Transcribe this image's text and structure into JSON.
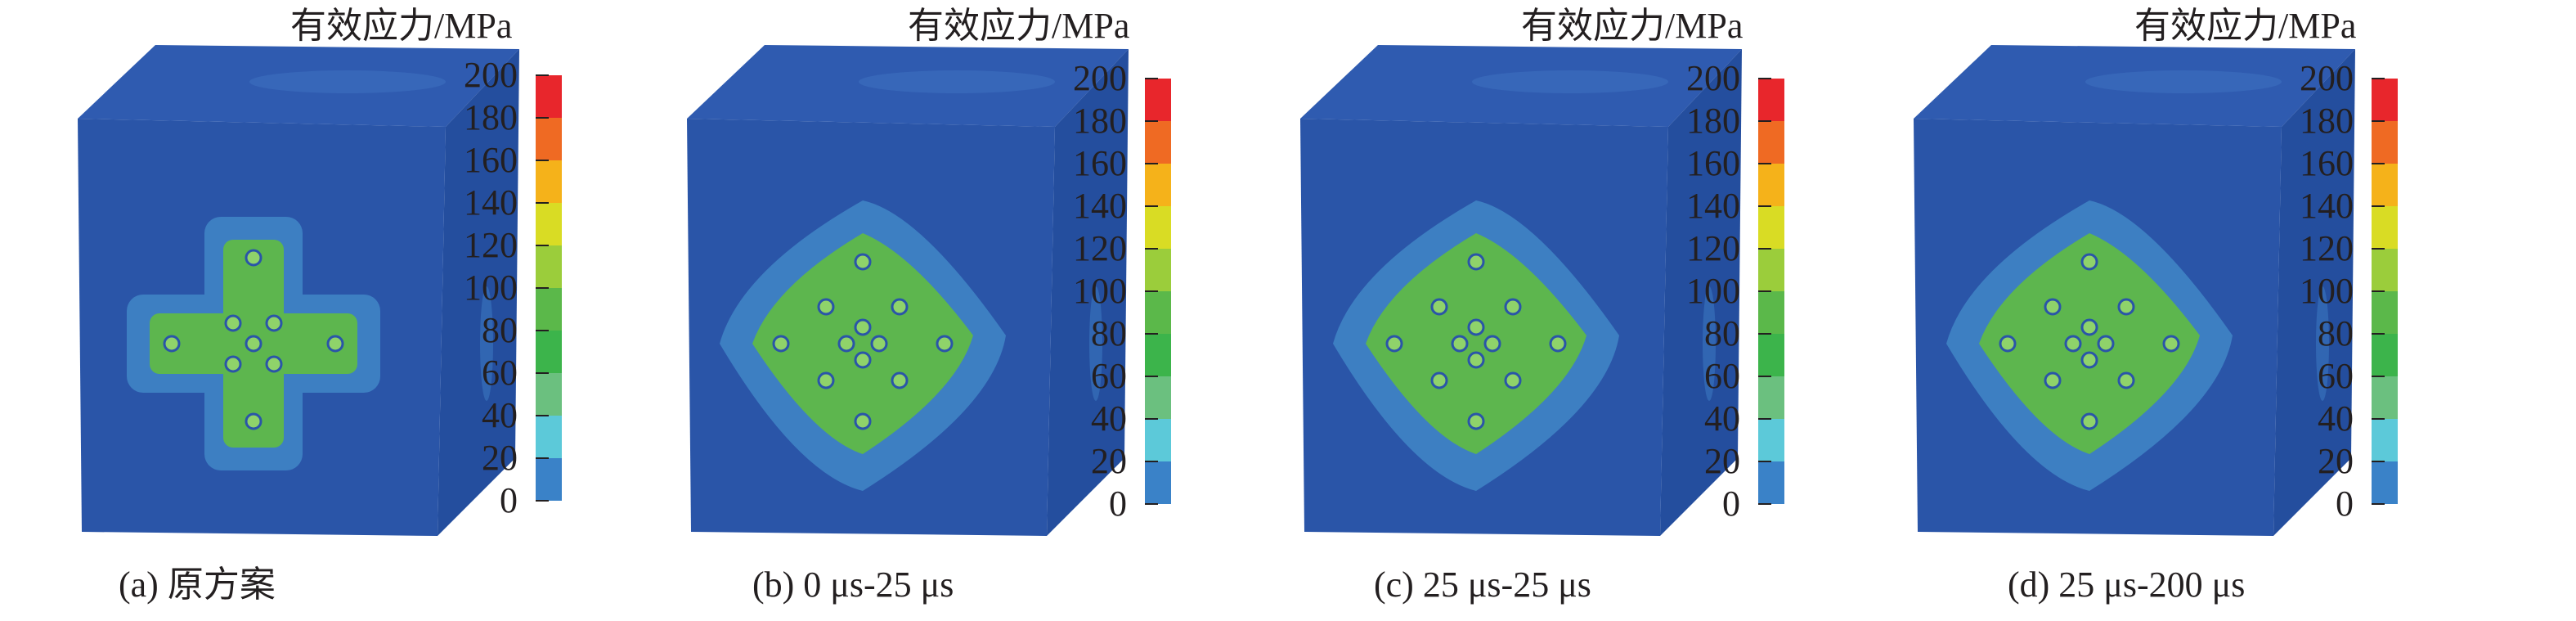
{
  "unit_label": "有效应力/MPa",
  "scale_ticks": [
    "200",
    "180",
    "160",
    "140",
    "120",
    "100",
    "80",
    "60",
    "40",
    "20",
    "0"
  ],
  "scale_colors": [
    "#e8262c",
    "#ef6a23",
    "#f5b21a",
    "#d9dc24",
    "#9bcd3b",
    "#5bb84a",
    "#3cb44b",
    "#6bc07f",
    "#5cc9d9",
    "#3a82c8",
    "#2a55a8"
  ],
  "colors": {
    "cube_front": "#2a55a8",
    "cube_top": "#2f5bb0",
    "cube_side": "#244e9e",
    "halo": "#3d7fc2",
    "core": "#5db64e"
  },
  "panels": [
    {
      "caption": "(a) 原方案",
      "pattern": "cross"
    },
    {
      "caption": "(b) 0 μs-25 μs",
      "pattern": "diamond"
    },
    {
      "caption": "(c) 25 μs-25 μs",
      "pattern": "diamond"
    },
    {
      "caption": "(d) 25 μs-200 μs",
      "pattern": "diamond"
    }
  ]
}
